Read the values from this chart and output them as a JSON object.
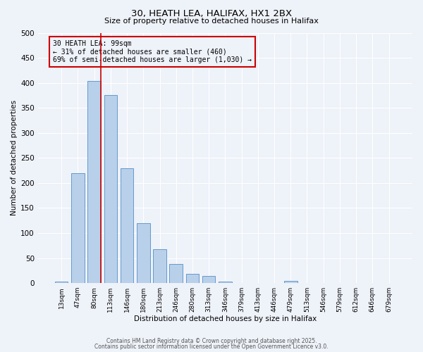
{
  "title": "30, HEATH LEA, HALIFAX, HX1 2BX",
  "subtitle": "Size of property relative to detached houses in Halifax",
  "xlabel": "Distribution of detached houses by size in Halifax",
  "ylabel": "Number of detached properties",
  "bar_color": "#b8d0ea",
  "bar_edge_color": "#6699cc",
  "background_color": "#eef2f9",
  "grid_color": "#ffffff",
  "annotation_box_color": "#cc0000",
  "vline_color": "#cc0000",
  "vline_x_index": 2,
  "annotation_title": "30 HEATH LEA: 99sqm",
  "annotation_line1": "← 31% of detached houses are smaller (460)",
  "annotation_line2": "69% of semi-detached houses are larger (1,030) →",
  "categories": [
    "13sqm",
    "47sqm",
    "80sqm",
    "113sqm",
    "146sqm",
    "180sqm",
    "213sqm",
    "246sqm",
    "280sqm",
    "313sqm",
    "346sqm",
    "379sqm",
    "413sqm",
    "446sqm",
    "479sqm",
    "513sqm",
    "546sqm",
    "579sqm",
    "612sqm",
    "646sqm",
    "679sqm"
  ],
  "values": [
    3,
    220,
    403,
    375,
    230,
    119,
    68,
    38,
    18,
    14,
    3,
    0,
    0,
    0,
    5,
    0,
    0,
    0,
    0,
    0,
    0
  ],
  "ylim": [
    0,
    500
  ],
  "yticks": [
    0,
    50,
    100,
    150,
    200,
    250,
    300,
    350,
    400,
    450,
    500
  ],
  "footer1": "Contains HM Land Registry data © Crown copyright and database right 2025.",
  "footer2": "Contains public sector information licensed under the Open Government Licence v3.0."
}
